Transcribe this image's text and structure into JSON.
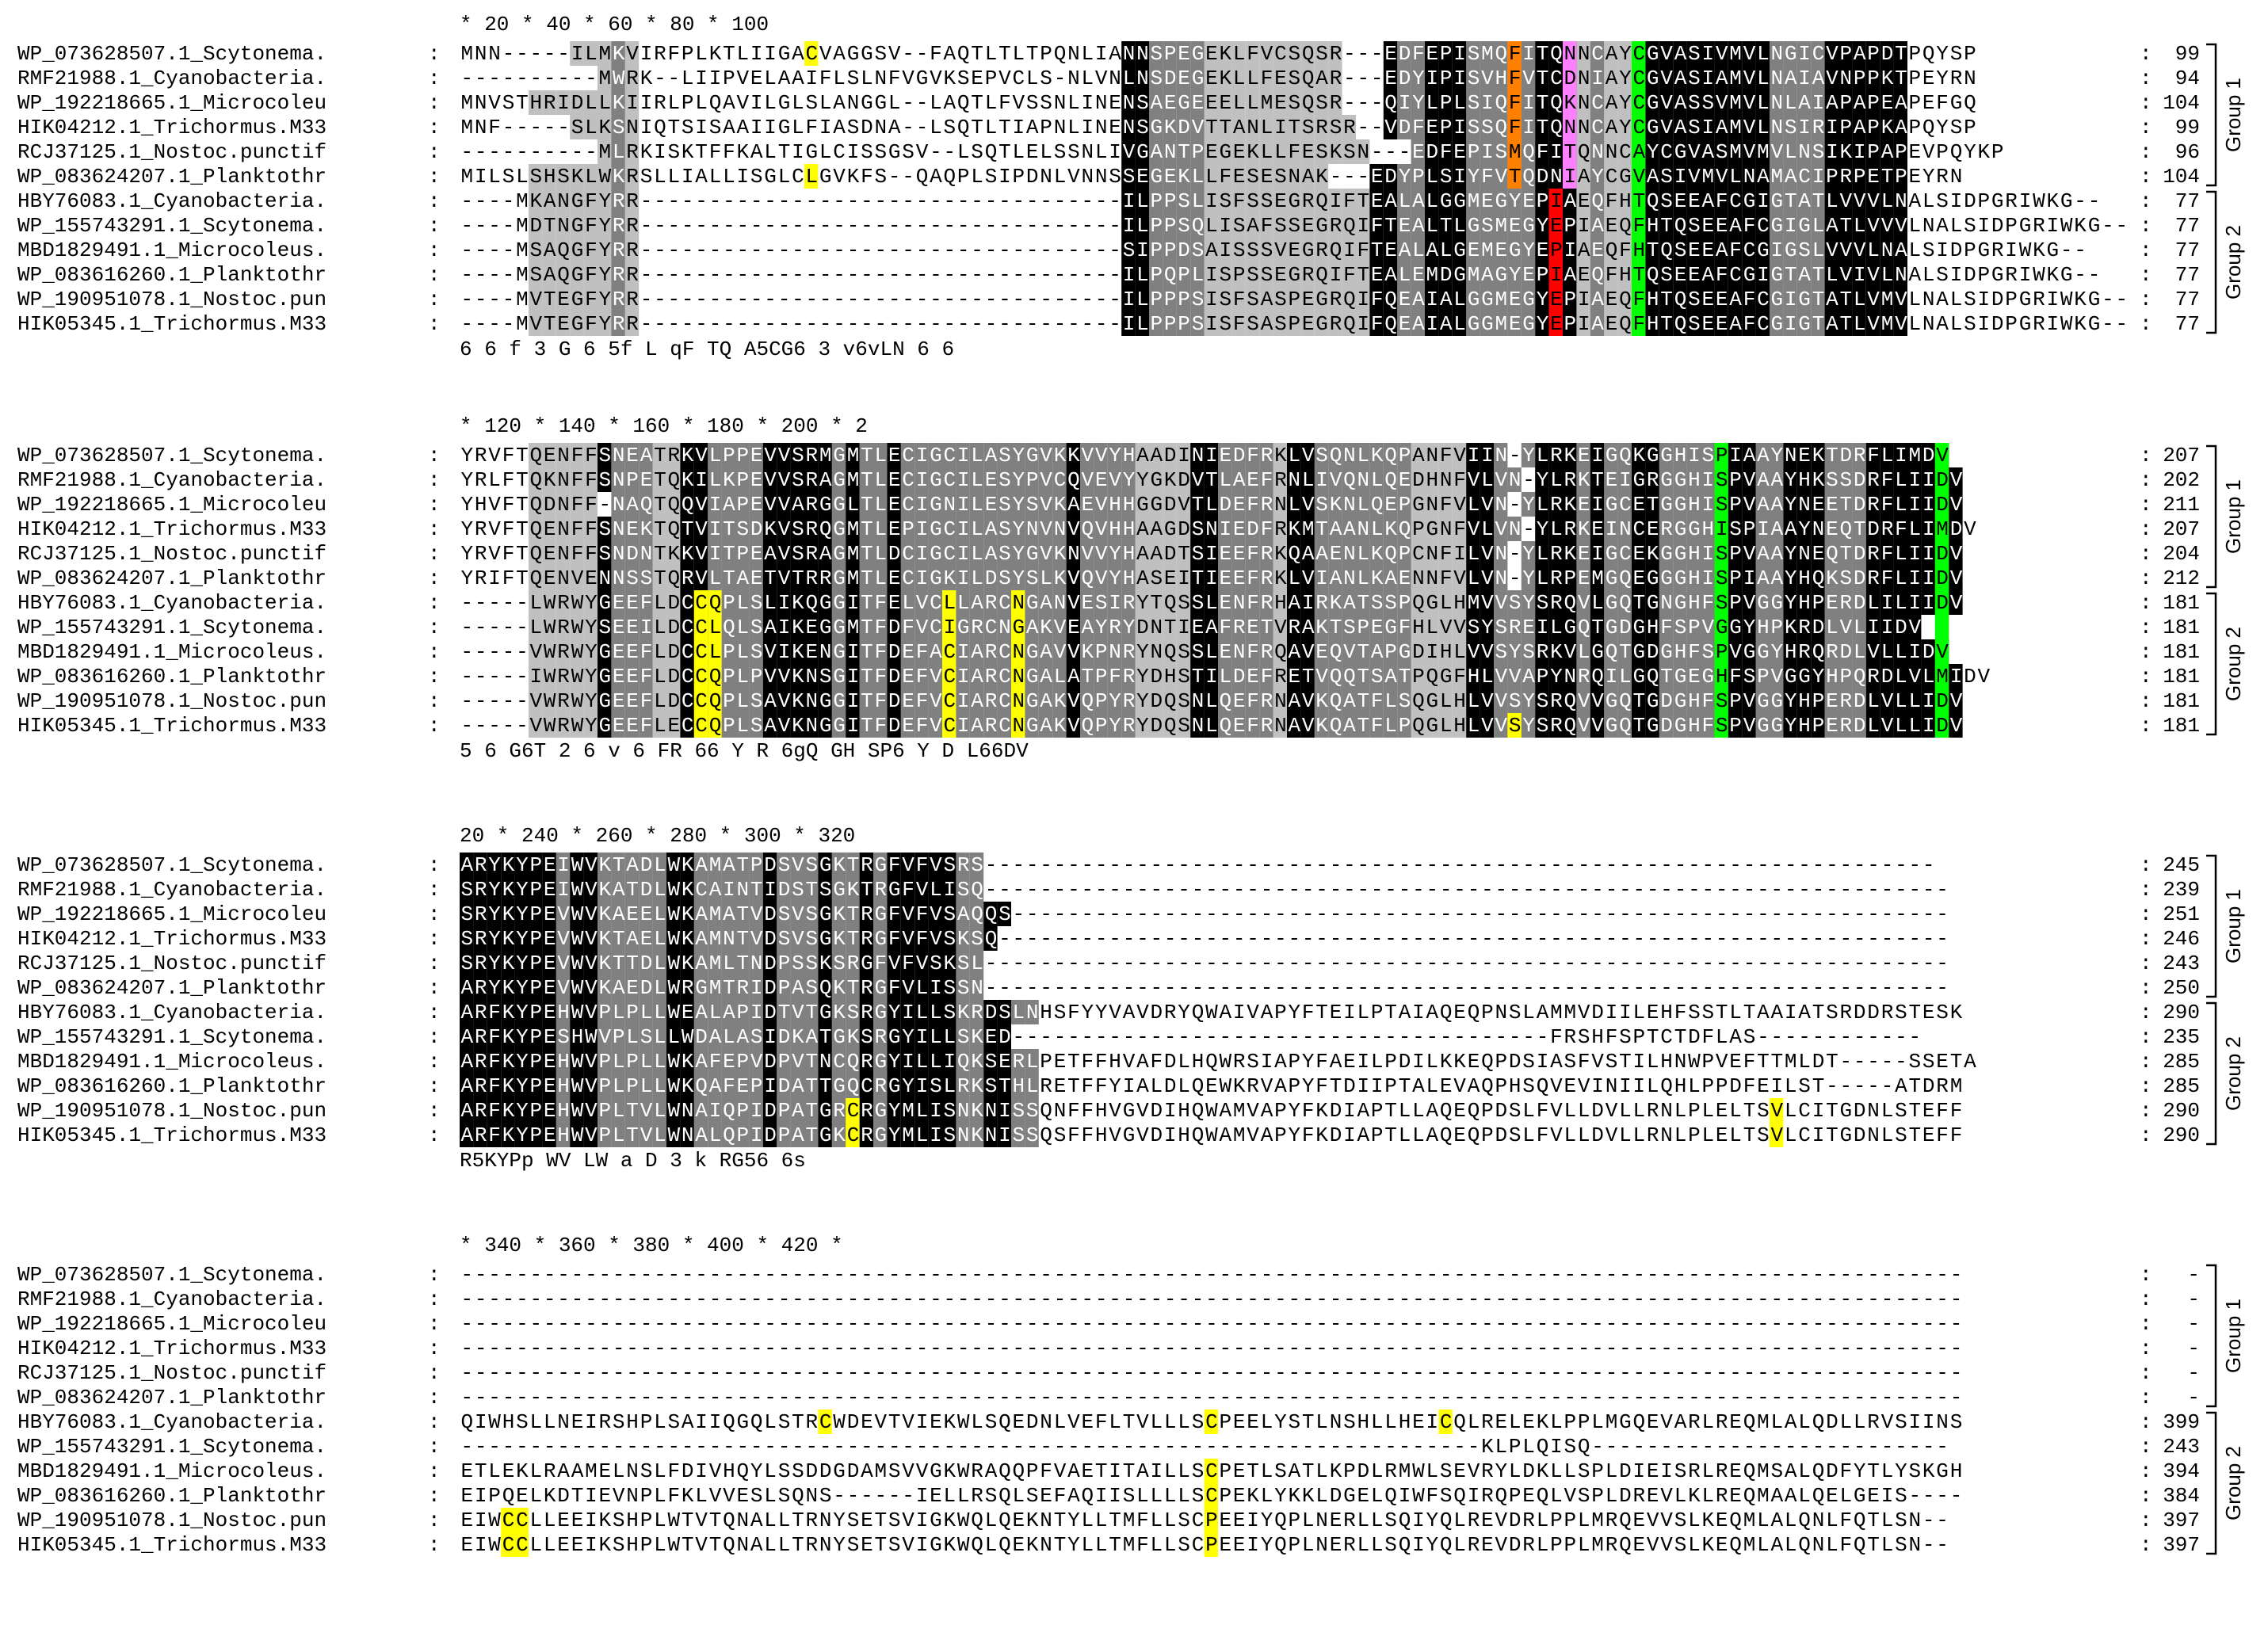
{
  "palette": {
    "black": "#000000",
    "dark_gray": "#808080",
    "light_gray": "#c0c0c0",
    "yellow": "#ffff00",
    "green": "#00ff00",
    "orange": "#ff8000",
    "red": "#ff0000",
    "magenta": "#ff80ff"
  },
  "blocks": [
    {
      "ruler": "    *        20         *        40         *        60         *        80         *       100",
      "rows": [
        {
          "name": "WP_073628507.1_Scytonema.",
          "seq": "MNN-----ILMKVIRFPLKTLIIGACVAGGSV--FAQTLTLTPQNLIANNSPEGEKLFVCSQSR---EDFEPISMQFITQNNCAYCGVASIVMVLNGICVPAPDTPQYSP",
          "end": "99"
        },
        {
          "name": "RMF21988.1_Cyanobacteria.",
          "seq": "----------MWRK--LIIPVELAAIFLSLNFVGVKSEPVCLS-NLVNLNSDEGEKLLFESQAR---EDYIPISVHFVTCDNIAYCGVASIAMVLNAIAVNPPKTPEYRN",
          "end": "94"
        },
        {
          "name": "WP_192218665.1_Microcoleu",
          "seq": "MNVSTHRIDLLKIIRLPLQAVILGLSLANGGL--LAQTLFVSSNLINENSAEGEEELLMESQSR---QIYLPLSIQFITQKNCAYCGVASSVMVLNLAIAPAPEAPEFGQ",
          "end": "104"
        },
        {
          "name": "HIK04212.1_Trichormus.M33",
          "seq": "MNF-----SLKSNIQTSISAAIIGLFIASDNA--LSQTLTIAPNLINENSGKDVTTANLITSRSR--VDFEPISSQFITQNNCAYCGVASIAMVLNSIRIPAPKAPQYSP",
          "end": "99"
        },
        {
          "name": "RCJ37125.1_Nostoc.punctif",
          "seq": "----------MLRKISKTFFKALTIGLCISSGSV--LSQTLELSSNLIVGANTPEGEKLLFESKSN---EDFEPISMQFITQNNCAYCGVASMVMVLNSIKIPAPEVPQYKP",
          "end": "96"
        },
        {
          "name": "WP_083624207.1_Planktothr",
          "seq": "MILSLSHSKLWKRSLLIALLISGLCLGVKFS--QAQPLSIPDNLVNNSSEGEKLLFESESNAK---EDYPLSIYFVTQDNIAYCGVASIVMVLNAMACIPRPETPEYRN",
          "end": "104"
        },
        {
          "name": "HBY76083.1_Cyanobacteria.",
          "seq": "----MKANGFYRR-----------------------------------ILPPSLISFSSEGRQIFTEALALGGMEGYEPIAEQFHTQSEEAFCGIGTATLVVVLNALSIDPGRIWKG--",
          "end": "77"
        },
        {
          "name": "WP_155743291.1_Scytonema.",
          "seq": "----MDTNGFYRR-----------------------------------ILPPSQLISAFSSEGRQIFTEALTLGSMEGYEPIAEQFHTQSEEAFCGIGLATLVVVLNALSIDPGRIWKG--",
          "end": "77"
        },
        {
          "name": "MBD1829491.1_Microcoleus.",
          "seq": "----MSAQGFYRR-----------------------------------SIPPDSAISSSVEGRQIFTEALALGEMEGYEPIAEQFHTQSEEAFCGIGSLVVVLNALSIDPGRIWKG--",
          "end": "77"
        },
        {
          "name": "WP_083616260.1_Planktothr",
          "seq": "----MSAQGFYRR-----------------------------------ILPQPLISPSSEGRQIFTEALEMDGMAGYEPIAEQFHTQSEEAFCGIGTATLVIVLNALSIDPGRIWKG--",
          "end": "77"
        },
        {
          "name": "WP_190951078.1_Nostoc.pun",
          "seq": "----MVTEGFYRR-----------------------------------ILPPPSISFSASPEGRQIFQEAIALGGMEGYEPIAEQFHTQSEEAFCGIGTATLVMVLNALSIDPGRIWKG--",
          "end": "77"
        },
        {
          "name": "HIK05345.1_Trichormus.M33",
          "seq": "----MVTEGFYRR-----------------------------------ILPPPSISFSASPEGRQIFQEAIALGGMEGYEPIAEQFHTQSEEAFCGIGTATLVMVLNALSIDPGRIWKG--",
          "end": "77"
        }
      ],
      "consensus": "                                                  6      6 f  3   G   6             5f  L    qF  TQ      A5CG6  3 v6vLN  6 6",
      "groups": [
        {
          "label": "Group 1",
          "from": 0,
          "to": 5
        },
        {
          "label": "Group 2",
          "from": 6,
          "to": 11
        }
      ]
    },
    {
      "ruler": "    *       120         *       140         *       160         *       180         *       200         *       2",
      "rows": [
        {
          "name": "WP_073628507.1_Scytonema.",
          "seq": "YRVFTQENFFSNEATRKVLPPEVVSRMGMTLECIGCILASYGVKKVVYHAADINIEDFRKLVSQNLKQPANFVIIN-YLRKEIGQKGGHISPIAAYNEKTDRFLIMDV",
          "end": "207"
        },
        {
          "name": "RMF21988.1_Cyanobacteria.",
          "seq": "YRLFTQKNFFSNPETQKILKPEVVSRAGMTLECIGCILESYPVCQVEVYYGKDVTLAEFRNLIVQNLQEDHNFVLVN-YLRKTEIGRGGHISPVAAYHKSSDRFLIIDV",
          "end": "202"
        },
        {
          "name": "WP_192218665.1_Microcoleu",
          "seq": "YHVFTQDNFF-NAQTQQVIAPEVVARGGLTLECIGNILESYSVKAEVHHGGDVTLDEFRNLVSKNLQEPGNFVLVN-YLRKEIGCETGGHISPVAAYNEETDRFLIIDV",
          "end": "211"
        },
        {
          "name": "HIK04212.1_Trichormus.M33",
          "seq": "YRVFTQENFFSNEKTQTVITSDKVSRQGMTLEPIGCILASYNVNVQVHHAAGDSNIEDFRKMTAANLKQPGNFVLVN-YLRKEINCERGGHISPIAAYNEQTDRFLIMDV",
          "end": "207"
        },
        {
          "name": "RCJ37125.1_Nostoc.punctif",
          "seq": "YRVFTQENFFSNDNTKKVITPEAVSRAGMTLDCIGCILASYGVKNVVYHAADTSIEEFRKQAAENLKQPCNFILVN-YLRKEIGCEKGGHISPVAAYNEQTDRFLIIDV",
          "end": "204"
        },
        {
          "name": "WP_083624207.1_Planktothr",
          "seq": "YRIFTQENVENNSSTQRVLTAETVTRRGMTLECIGKILDSYSLKVQVYHASEITIEEFRKLVIANLKAENNFVLVN-YLRPEMGQEGGGHISPIAAYHQKSDRFLIIDV",
          "end": "212"
        },
        {
          "name": "HBY76083.1_Cyanobacteria.",
          "seq": "-----LWRWYGEEFLDCCQPLSLIKQGGITFELVCLLARCNGANVESIRYTQSSLENFRHAIRKATSSPQGLHMVVSYSRQVLGQTGNGHFSPVGGYHPERDLILIIDV",
          "end": "181"
        },
        {
          "name": "WP_155743291.1_Scytonema.",
          "seq": "-----LWRWYSEEILDCCLQLSAIKEGGMTFDFVCIGRCNGAKVEAYRYDNTIEAFRETVRAKTSPEGFHLVVSYSREILGQTGDGHFSPVGGYHPKRDLVLIIDV",
          "end": "181"
        },
        {
          "name": "MBD1829491.1_Microcoleus.",
          "seq": "-----VWRWYGEEFLDCCLPLSVIKENGITFDEFACIARCNGAVVKPNRYNQSSLENFRQAVEQVTAPGDIHLVVSYSRKVLGQTGDGHFSPVGGYHRQRDLVLLIDV",
          "end": "181"
        },
        {
          "name": "WP_083616260.1_Planktothr",
          "seq": "-----IWRWYGEEFLDCCQPLPVVKNSGITFDEFVCIARCNGALATPFRYDHSTILDEFRETVQQTSATPQGFHLVVAPYNRQILGQTGEGHFSPVGGYHPQRDLVLMIDV",
          "end": "181"
        },
        {
          "name": "WP_190951078.1_Nostoc.pun",
          "seq": "-----VWRWYGEEFLDCCQPLSAVKNGGITFDEFVCIARCNGAKVQPYRYDQSNLQEFRNAVKQATFLSQGLHLVVSYSRQVVGQTGDGHFSPVGGYHPERDLVLLIDV",
          "end": "181"
        },
        {
          "name": "HIK05345.1_Trichormus.M33",
          "seq": "-----VWRWYGEEFLECCQPLSAVKNGGITFDEFVCIARCNGAKVQPYRYDQSNLQEFRNAVKQATFLPQGLHLVVSYSRQVVGQTGDGHFSPVGGYHPERDLVLLIDV",
          "end": "181"
        }
      ],
      "consensus": "         5                6  G6T  2   6            v             6    FR                 66   Y  R    6gQ     GH  SP6   Y      D   L66DV",
      "groups": [
        {
          "label": "Group 1",
          "from": 0,
          "to": 5
        },
        {
          "label": "Group 2",
          "from": 6,
          "to": 11
        }
      ]
    },
    {
      "ruler": "20        *       240         *       260         *       280         *       300         *       320",
      "rows": [
        {
          "name": "WP_073628507.1_Scytonema.",
          "seq": "ARYKYPEIWVKTADLWKAMATPDSVSGKTRGFVFVSRS---------------------------------------------------------------------",
          "end": "245"
        },
        {
          "name": "RMF21988.1_Cyanobacteria.",
          "seq": "SRYKYPEIWVKATDLWKCAINTIDSTSGKTRGFVLISQ----------------------------------------------------------------------",
          "end": "239"
        },
        {
          "name": "WP_192218665.1_Microcoleu",
          "seq": "SRYKYPEVWVKAEELWKAMATVDSVSGKTRGFVFVSAQQS--------------------------------------------------------------------",
          "end": "251"
        },
        {
          "name": "HIK04212.1_Trichormus.M33",
          "seq": "SRYKYPEVWVKTAELWKAMNTVDSVSGKTRGFVFVSKSQ---------------------------------------------------------------------",
          "end": "246"
        },
        {
          "name": "RCJ37125.1_Nostoc.punctif",
          "seq": "SRYKYPEVWVKTTDLWKAMLTNDPSSKSRGFVFVSKSL----------------------------------------------------------------------",
          "end": "243"
        },
        {
          "name": "WP_083624207.1_Planktothr",
          "seq": "ARYKYPEVWVKAEDLWRGMTRIDPASQKTRGFVLISSN----------------------------------------------------------------------",
          "end": "250"
        },
        {
          "name": "HBY76083.1_Cyanobacteria.",
          "seq": "ARFKYPEHWVPLPLLWEALAPIDTVTGKSRGYILLSKRDSLNHSFYYVAVDRYQWAIVAPYFTEILPTAIAQEQPNSLAMMVDIILEHFSSTLTAAIATSRDDRSTESK",
          "end": "290"
        },
        {
          "name": "WP_155743291.1_Scytonema.",
          "seq": "ARFKYPESHWVPLSLLWDALASIDKATGKSRGYILLSKED---------------------------------------FRSHFSPTCTDFLAS------------",
          "end": "235"
        },
        {
          "name": "MBD1829491.1_Microcoleus.",
          "seq": "ARFKYPEHWVPLPLLWKAFEPVDPVTNCQRGYILLIQKSERLPETFFHVAFDLHQWRSIAPYFAEILPDILKKEQPDSIASFVSTILHNWPVEFTTMLDT-----SSETA",
          "end": "285"
        },
        {
          "name": "WP_083616260.1_Planktothr",
          "seq": "ARFKYPEHWVPLPLLWKQAFEPIDATTGQCRGYISLRKSTHLRETFFYIALDLQEWKRVAPYFTDIIPTALEVAQPHSQVEVINIILQHLPPDFEILST-----ATDRM",
          "end": "285"
        },
        {
          "name": "WP_190951078.1_Nostoc.pun",
          "seq": "ARFKYPEHWVPLTVLWNAIQPIDPATGRCRGYMLISNKNISSQNFFHVGVDIHQWAMVAPYFKDIAPTLLAQEQPDSLFVLLDVLLRNLPLELTSVLCITGDNLSTEFF",
          "end": "290"
        },
        {
          "name": "HIK05345.1_Trichormus.M33",
          "seq": "ARFKYPEHWVPLTVLWNALQPIDPATGKCRGYMLISNKNISSQSFFHVGVDIHQWAMVAPYFKDIAPTLLAQEQPDSLFVLLDVLLRNLPLELTSVLCITGDNLSTEFF",
          "end": "290"
        }
      ],
      "consensus": "R5KYPp WV      LW  a       D   3 k RG56  6s",
      "groups": [
        {
          "label": "Group 1",
          "from": 0,
          "to": 5
        },
        {
          "label": "Group 2",
          "from": 6,
          "to": 11
        }
      ]
    },
    {
      "ruler": "    *       340         *       360         *       380         *       400         *       420         *",
      "rows": [
        {
          "name": "WP_073628507.1_Scytonema.",
          "seq": "-------------------------------------------------------------------------------------------------------------",
          "end": "-"
        },
        {
          "name": "RMF21988.1_Cyanobacteria.",
          "seq": "-------------------------------------------------------------------------------------------------------------",
          "end": "-"
        },
        {
          "name": "WP_192218665.1_Microcoleu",
          "seq": "-------------------------------------------------------------------------------------------------------------",
          "end": "-"
        },
        {
          "name": "HIK04212.1_Trichormus.M33",
          "seq": "-------------------------------------------------------------------------------------------------------------",
          "end": "-"
        },
        {
          "name": "RCJ37125.1_Nostoc.punctif",
          "seq": "-------------------------------------------------------------------------------------------------------------",
          "end": "-"
        },
        {
          "name": "WP_083624207.1_Planktothr",
          "seq": "-------------------------------------------------------------------------------------------------------------",
          "end": "-"
        },
        {
          "name": "HBY76083.1_Cyanobacteria.",
          "seq": "QIWHSLLNEIRSHPLSAIIQGQLSTRCWDEVTVIEKWLSQEDNLVEFLTVLLLSCPEELYSTLNSHLLHEICQLRELEKLPPLMGQEVARLREQMLALQDLLRVSIINS",
          "end": "399"
        },
        {
          "name": "WP_155743291.1_Scytonema.",
          "seq": "--------------------------------------------------------------------------KLPLQISQ--------------------------",
          "end": "243"
        },
        {
          "name": "MBD1829491.1_Microcoleus.",
          "seq": "ETLEKLRAAMELNSLFDIVHQYLSSDDGDAMSVVGKWRAQQPFVAETITAILLSCPETLSATLKPDLRMWLSEVRYLDKLLSPLDIEISRLREQMSALQDFYTLYSKGH",
          "end": "394"
        },
        {
          "name": "WP_083616260.1_Planktothr",
          "seq": "EIPQELKDTIEVNPLFKLVVESLSQNS------IELLRSQLSEFAQIISLLLLSCPEKLYKKLDGELQIWFSQIRQPEQLVSPLDREVLKLREQMAALQELGEIS----",
          "end": "384"
        },
        {
          "name": "WP_190951078.1_Nostoc.pun",
          "seq": "EIWCCLLEEIKSHPLWTVTQNALLTRNYSETSVIGKWQLQEKNTYLLTMFLLSCPEEIYQPLNERLLSQIYQLREVDRLPPLMRQEVVSLKEQMLALQNLFQTLSN--",
          "end": "397"
        },
        {
          "name": "HIK05345.1_Trichormus.M33",
          "seq": "EIWCCLLEEIKSHPLWTVTQNALLTRNYSETSVIGKWQLQEKNTYLLTMFLLSCPEEIYQPLNERLLSQIYQLREVDRLPPLMRQEVVSLKEQMLALQNLFQTLSN--",
          "end": "397"
        }
      ],
      "consensus": "",
      "groups": [
        {
          "label": "Group 1",
          "from": 0,
          "to": 5
        },
        {
          "label": "Group 2",
          "from": 6,
          "to": 11
        }
      ]
    }
  ],
  "shading": {
    "black_cols": [
      [
        48,
        49,
        66,
        67,
        70,
        71,
        72,
        78,
        79,
        80,
        86,
        87,
        88,
        89,
        90,
        91,
        92,
        93,
        94,
        99,
        100,
        101,
        102,
        103,
        104
      ],
      [
        10,
        16,
        17,
        22,
        23,
        24,
        25,
        26,
        28,
        31,
        44,
        53,
        54,
        60,
        61,
        73,
        74,
        78,
        79,
        80,
        82,
        85,
        86,
        91,
        92,
        93,
        96,
        97,
        98,
        102,
        103,
        104,
        105,
        106,
        107,
        108
      ],
      [
        0,
        1,
        2,
        3,
        4,
        5,
        6,
        8,
        9,
        15,
        16,
        22,
        26,
        29,
        31,
        32,
        33,
        34,
        35,
        38,
        39
      ]
    ],
    "gray_cols": [
      [
        11,
        50,
        51,
        52,
        53,
        68,
        69,
        73,
        74,
        75,
        76,
        77,
        82,
        95,
        96,
        97,
        98
      ],
      [
        11,
        12,
        13,
        18,
        19,
        20,
        21,
        27,
        29,
        30,
        32,
        33,
        34,
        35,
        36,
        37,
        38,
        39,
        40,
        41,
        42,
        43,
        45,
        46,
        47,
        48,
        55,
        56,
        57,
        58,
        62,
        63,
        64,
        65,
        66,
        67,
        68,
        75,
        76,
        77,
        81,
        83,
        84,
        87,
        88,
        89,
        90,
        94,
        95,
        99,
        100,
        101
      ],
      [
        7,
        10,
        11,
        12,
        13,
        14,
        17,
        18,
        19,
        20,
        21,
        23,
        24,
        25,
        27,
        28,
        30,
        36,
        37,
        40,
        41
      ]
    ],
    "light_cols": [
      [
        5,
        6,
        7,
        8,
        9,
        10,
        12,
        54,
        55,
        56,
        57,
        58,
        59,
        60,
        61,
        62,
        63,
        64,
        65,
        81,
        83,
        84,
        85
      ],
      [
        5,
        6,
        7,
        8,
        9,
        14,
        15,
        49,
        50,
        51,
        52,
        59,
        69,
        70,
        71,
        72
      ],
      []
    ],
    "hl": [
      {
        "block": 0,
        "row": 0,
        "col": 25,
        "color": "yellow"
      },
      {
        "block": 0,
        "row": 5,
        "col": 25,
        "color": "yellow"
      },
      {
        "block": 0,
        "rows": [
          0,
          1,
          2,
          3,
          4,
          5,
          6,
          7,
          8,
          9,
          10,
          11
        ],
        "col": 85,
        "color": "green"
      },
      {
        "block": 0,
        "rows": [
          0,
          1,
          2,
          3,
          4,
          5
        ],
        "col": 76,
        "color": "orange"
      },
      {
        "block": 0,
        "rows": [
          6,
          7,
          8,
          9,
          10,
          11
        ],
        "col": 79,
        "color": "red"
      },
      {
        "block": 0,
        "rows": [
          0,
          1,
          2,
          3,
          4,
          5
        ],
        "col": 80,
        "color": "magenta"
      },
      {
        "block": 1,
        "rows": [
          0,
          1,
          2,
          3,
          4,
          5,
          6,
          7,
          8,
          9,
          10,
          11
        ],
        "col": 91,
        "color": "green"
      },
      {
        "block": 1,
        "rows": [
          0,
          1,
          2,
          3,
          4,
          5,
          6,
          7,
          8,
          9,
          10,
          11
        ],
        "col": 107,
        "color": "green"
      },
      {
        "block": 1,
        "rows": [
          6,
          7,
          8,
          9,
          10,
          11
        ],
        "col": 17,
        "color": "yellow"
      },
      {
        "block": 1,
        "rows": [
          6,
          7,
          8,
          9,
          10,
          11
        ],
        "col": 18,
        "color": "yellow"
      },
      {
        "block": 1,
        "rows": [
          6,
          7,
          8,
          9,
          10,
          11
        ],
        "col": 35,
        "color": "yellow"
      },
      {
        "block": 1,
        "rows": [
          6,
          7,
          8,
          9,
          10,
          11
        ],
        "col": 40,
        "color": "yellow"
      },
      {
        "block": 1,
        "row": 11,
        "col": 76,
        "color": "yellow"
      },
      {
        "block": 2,
        "rows": [
          10,
          11
        ],
        "col": 28,
        "color": "yellow"
      },
      {
        "block": 2,
        "rows": [
          10,
          11
        ],
        "col": 95,
        "color": "yellow"
      },
      {
        "block": 3,
        "row": 6,
        "col": 26,
        "color": "yellow"
      },
      {
        "block": 3,
        "rows": [
          6,
          8,
          9,
          10,
          11
        ],
        "col": 54,
        "color": "yellow"
      },
      {
        "block": 3,
        "row": 6,
        "col": 71,
        "color": "yellow"
      },
      {
        "block": 3,
        "rows": [
          10,
          11
        ],
        "col": 3,
        "color": "yellow"
      },
      {
        "block": 3,
        "rows": [
          10,
          11
        ],
        "col": 4,
        "color": "yellow"
      }
    ]
  }
}
